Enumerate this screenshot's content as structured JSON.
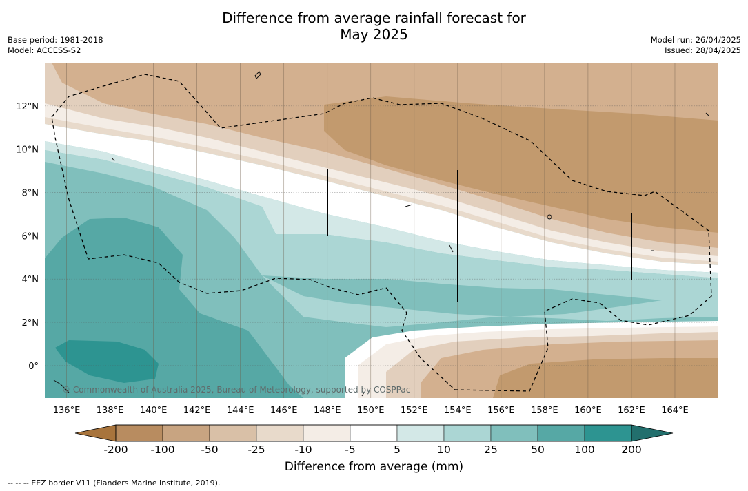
{
  "title_line1": "Difference from average rainfall forecast for",
  "title_line2": "May 2025",
  "base_period": "Base period: 1981-2018",
  "model": "Model: ACCESS-S2",
  "model_run": "Model run: 26/04/2025",
  "issued": "Issued: 28/04/2025",
  "copyright": "© Commonwealth of Australia 2025, Bureau of Meteorology, supported by COSPPac",
  "lon_labels": [
    "136°E",
    "138°E",
    "140°E",
    "142°E",
    "144°E",
    "146°E",
    "148°E",
    "150°E",
    "152°E",
    "154°E",
    "156°E",
    "158°E",
    "160°E",
    "162°E",
    "164°E"
  ],
  "lat_labels": [
    "12°N",
    "10°N",
    "8°N",
    "6°N",
    "4°N",
    "2°N",
    "0°"
  ],
  "map_extent": {
    "lon_min": 135,
    "lon_max": 166,
    "lat_min": -1.5,
    "lat_max": 14
  },
  "lon_ticks": [
    136,
    138,
    140,
    142,
    144,
    146,
    148,
    150,
    152,
    154,
    156,
    158,
    160,
    162,
    164
  ],
  "lat_ticks": [
    12,
    10,
    8,
    6,
    4,
    2,
    0
  ],
  "colorbar": {
    "title": "Difference from average (mm)",
    "tick_labels": [
      "-200",
      "-100",
      "-50",
      "-25",
      "-10",
      "-5",
      "5",
      "10",
      "25",
      "50",
      "100",
      "200"
    ],
    "colors": [
      "#a8743c",
      "#b88c60",
      "#c8a481",
      "#d9c0a7",
      "#e8dacb",
      "#f4ede6",
      "#ffffff",
      "#d3e8e7",
      "#abd6d4",
      "#80bfbc",
      "#56a8a5",
      "#2d9491",
      "#1c6b69"
    ],
    "under_color": "#a8743c",
    "over_color": "#226f6d"
  },
  "footnote": "-- -- -- EEZ border V11 (Flanders Marine Institute, 2019)."
}
